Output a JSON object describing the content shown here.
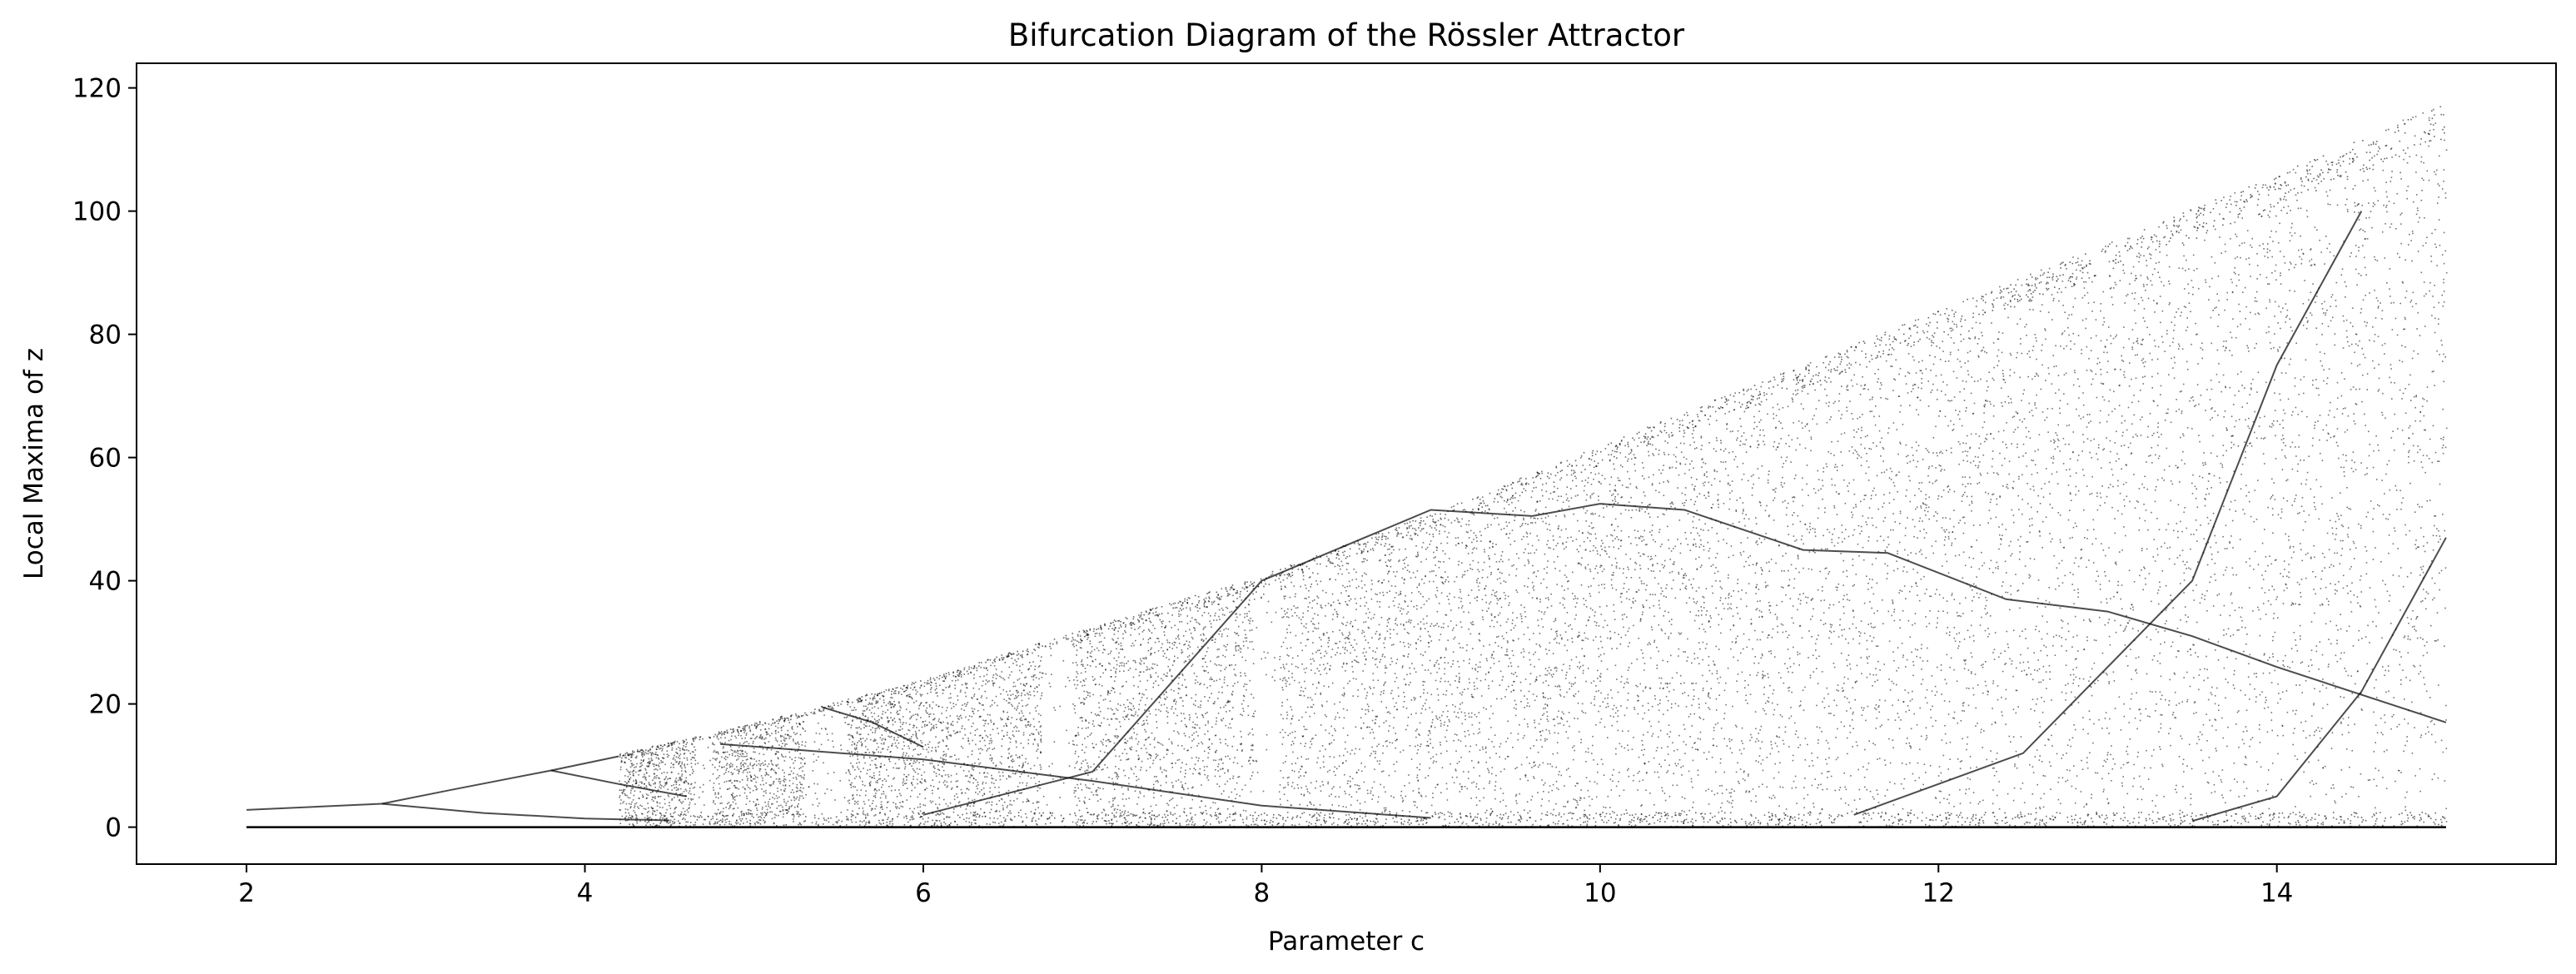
{
  "chart_data": {
    "type": "scatter",
    "title": "Bifurcation Diagram of the Rössler Attractor",
    "xlabel": "Parameter c",
    "ylabel": "Local Maxima of z",
    "xlim": [
      1.35,
      15.65
    ],
    "ylim": [
      -6,
      124
    ],
    "xticks": [
      "2",
      "4",
      "6",
      "8",
      "10",
      "12",
      "14"
    ],
    "yticks": [
      "0",
      "20",
      "40",
      "60",
      "80",
      "100",
      "120"
    ],
    "grid": false,
    "legend": "none",
    "marker_color": "#000000",
    "c_range": [
      2,
      15
    ],
    "upper_envelope": [
      {
        "c": 2,
        "z": 2.8
      },
      {
        "c": 2.8,
        "z": 3.8
      },
      {
        "c": 3.4,
        "z": 7.5
      },
      {
        "c": 3.8,
        "z": 9.2
      },
      {
        "c": 4.2,
        "z": 12
      },
      {
        "c": 5,
        "z": 17
      },
      {
        "c": 6,
        "z": 24
      },
      {
        "c": 6.8,
        "z": 31
      },
      {
        "c": 8,
        "z": 41
      },
      {
        "c": 9,
        "z": 51
      },
      {
        "c": 10,
        "z": 62
      },
      {
        "c": 11,
        "z": 73
      },
      {
        "c": 12,
        "z": 84
      },
      {
        "c": 13,
        "z": 95
      },
      {
        "c": 14,
        "z": 106
      },
      {
        "c": 15,
        "z": 118
      }
    ],
    "periodic_branches": [
      {
        "name": "",
        "points": [
          {
            "c": 2,
            "z": 2.8
          },
          {
            "c": 2.8,
            "z": 3.8
          }
        ]
      },
      {
        "name": "",
        "points": [
          {
            "c": 2.8,
            "z": 3.8
          },
          {
            "c": 3.2,
            "z": 6
          },
          {
            "c": 3.8,
            "z": 9.2
          },
          {
            "c": 4.2,
            "z": 11.5
          }
        ]
      },
      {
        "name": "",
        "points": [
          {
            "c": 2.8,
            "z": 3.8
          },
          {
            "c": 3.4,
            "z": 2.3
          },
          {
            "c": 4.0,
            "z": 1.4
          },
          {
            "c": 4.5,
            "z": 1.1
          }
        ]
      },
      {
        "name": "",
        "points": [
          {
            "c": 3.8,
            "z": 9.2
          },
          {
            "c": 4.2,
            "z": 7
          },
          {
            "c": 4.6,
            "z": 5
          }
        ]
      },
      {
        "name": "",
        "points": [
          {
            "c": 5.4,
            "z": 19.5
          },
          {
            "c": 5.7,
            "z": 17
          },
          {
            "c": 6.0,
            "z": 13
          }
        ]
      },
      {
        "name": "",
        "points": [
          {
            "c": 4.8,
            "z": 13.5
          },
          {
            "c": 6,
            "z": 11
          },
          {
            "c": 7,
            "z": 7.5
          },
          {
            "c": 8,
            "z": 3.5
          },
          {
            "c": 9,
            "z": 1.5
          }
        ]
      },
      {
        "name": "",
        "points": [
          {
            "c": 6,
            "z": 2
          },
          {
            "c": 7,
            "z": 9
          },
          {
            "c": 8,
            "z": 40
          },
          {
            "c": 9,
            "z": 51.5
          },
          {
            "c": 9.6,
            "z": 50.5
          },
          {
            "c": 10,
            "z": 52.5
          },
          {
            "c": 10.5,
            "z": 51.5
          },
          {
            "c": 11.2,
            "z": 45
          },
          {
            "c": 11.7,
            "z": 44.5
          },
          {
            "c": 12.4,
            "z": 37
          },
          {
            "c": 13,
            "z": 35
          },
          {
            "c": 13.5,
            "z": 31
          },
          {
            "c": 14,
            "z": 26
          },
          {
            "c": 15,
            "z": 17
          }
        ]
      },
      {
        "name": "",
        "points": [
          {
            "c": 11.5,
            "z": 2
          },
          {
            "c": 12.5,
            "z": 12
          },
          {
            "c": 13.5,
            "z": 40
          },
          {
            "c": 14,
            "z": 75
          },
          {
            "c": 14.5,
            "z": 100
          }
        ]
      },
      {
        "name": "",
        "points": [
          {
            "c": 13.5,
            "z": 1
          },
          {
            "c": 14,
            "z": 5
          },
          {
            "c": 14.5,
            "z": 22
          },
          {
            "c": 15,
            "z": 47
          }
        ]
      }
    ],
    "periodic_windows": [
      {
        "c_min": 4.65,
        "c_max": 4.75
      },
      {
        "c_min": 5.3,
        "c_max": 5.55
      },
      {
        "c_min": 6.7,
        "c_max": 6.88
      },
      {
        "c_min": 7.95,
        "c_max": 8.1
      }
    ],
    "baseline_z": 0
  }
}
